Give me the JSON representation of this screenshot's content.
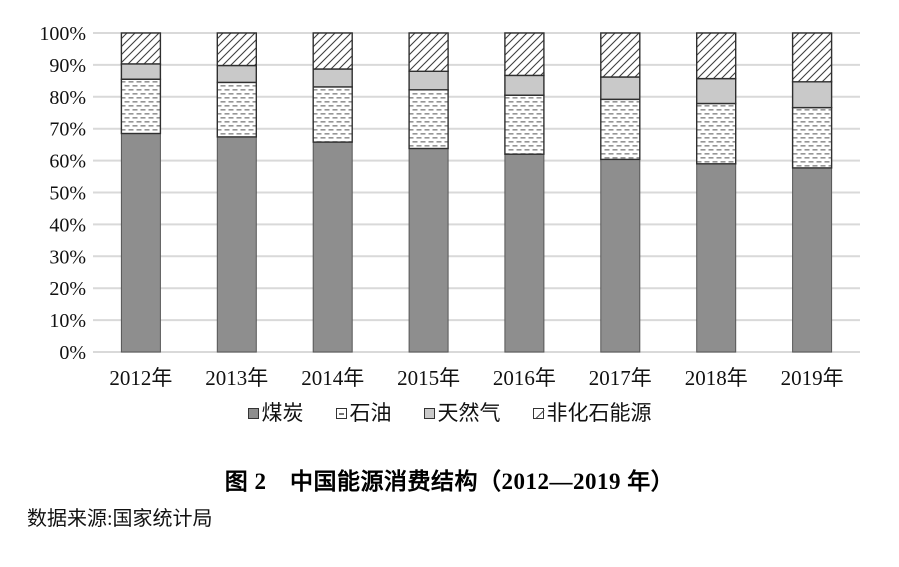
{
  "title": "图 2　中国能源消费结构（2012—2019 年）",
  "source": "数据来源:国家统计局",
  "chart_data": {
    "type": "bar",
    "subtype": "stacked-percent",
    "categories": [
      "2012年",
      "2013年",
      "2014年",
      "2015年",
      "2016年",
      "2017年",
      "2018年",
      "2019年"
    ],
    "series": [
      {
        "name": "煤炭",
        "key": "coal",
        "values": [
          68.5,
          67.4,
          65.8,
          63.8,
          62.0,
          60.4,
          59.0,
          57.7
        ]
      },
      {
        "name": "石油",
        "key": "oil",
        "values": [
          17.0,
          17.1,
          17.3,
          18.4,
          18.5,
          18.8,
          18.9,
          18.9
        ]
      },
      {
        "name": "天然气",
        "key": "gas",
        "values": [
          4.8,
          5.3,
          5.6,
          5.8,
          6.2,
          7.0,
          7.8,
          8.1
        ]
      },
      {
        "name": "非化石能源",
        "key": "nonfossil",
        "values": [
          9.7,
          10.2,
          11.3,
          12.0,
          13.3,
          13.8,
          14.3,
          15.3
        ]
      }
    ],
    "ylim": [
      0,
      100
    ],
    "ytick_step": 10,
    "ytick_suffix": "%",
    "grid": "horizontal gridlines at every 10%",
    "legend_position": "bottom"
  },
  "colors": {
    "coal_fill": "#8e8e8e",
    "gas_fill": "#c9c9c9",
    "segment_outline": "#2f2f2f",
    "coal_outline": "#565656",
    "gridline": "#d9d9d9",
    "pattern_ink": "#7d7d7d",
    "hatch_ink": "#3f3f3f",
    "text": "#111111"
  }
}
